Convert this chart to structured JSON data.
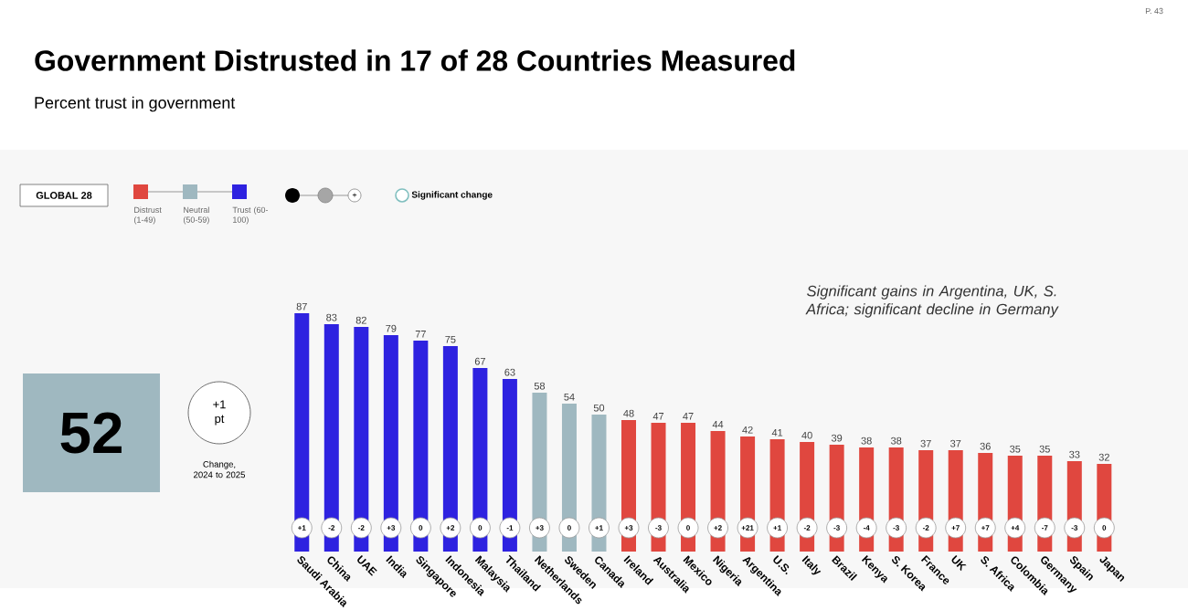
{
  "chart_data": {
    "type": "bar",
    "title": "Government Distrusted in 17 of 28 Countries Measured",
    "subtitle": "Percent trust in government",
    "categories": [
      "Saudi Arabia",
      "China",
      "UAE",
      "India",
      "Singapore",
      "Indonesia",
      "Malaysia",
      "Thailand",
      "Netherlands",
      "Sweden",
      "Canada",
      "Ireland",
      "Australia",
      "Mexico",
      "Nigeria",
      "Argentina",
      "U.S.",
      "Italy",
      "Brazil",
      "Kenya",
      "S. Korea",
      "France",
      "UK",
      "S. Africa",
      "Colombia",
      "Germany",
      "Spain",
      "Japan"
    ],
    "series": [
      {
        "name": "Distrust (1-49)",
        "color": "#e0473f",
        "values": [
          null,
          null,
          null,
          null,
          null,
          null,
          null,
          null,
          null,
          null,
          null,
          48,
          47,
          47,
          44,
          42,
          41,
          40,
          39,
          38,
          38,
          37,
          37,
          36,
          35,
          35,
          33,
          32
        ]
      },
      {
        "name": "Neutral (50-59)",
        "color": "#9fb8c0",
        "values": [
          null,
          null,
          null,
          null,
          null,
          null,
          null,
          null,
          58,
          54,
          50,
          null,
          null,
          null,
          null,
          null,
          null,
          null,
          null,
          null,
          null,
          null,
          null,
          null,
          null,
          null,
          null,
          null
        ]
      },
      {
        "name": "Trust (60-100)",
        "color": "#2e22e0",
        "values": [
          87,
          83,
          82,
          79,
          77,
          75,
          67,
          63,
          null,
          null,
          null,
          null,
          null,
          null,
          null,
          null,
          null,
          null,
          null,
          null,
          null,
          null,
          null,
          null,
          null,
          null,
          null,
          null
        ]
      }
    ],
    "stacked": true,
    "ylim": [
      0,
      87
    ],
    "data_labels": true,
    "tick_labels": "x",
    "legend": "top left",
    "annotations": [
      "Significant gains in Argentina, UK, S. Africa; significant decline in Germany",
      "GLOBAL 28",
      "52",
      "+1 pt",
      "Change, 2024 to 2025",
      "Significant change",
      "+",
      "P. 43",
      "+1",
      "-2",
      "-2",
      "+3",
      "0",
      "+2",
      "0",
      "-1",
      "+3",
      "0",
      "+1",
      "+3",
      "-3",
      "0",
      "+2",
      "+21",
      "+1",
      "-2",
      "-3",
      "-4",
      "-3",
      "-2",
      "+7",
      "+7",
      "+4",
      "-7",
      "-3",
      "0"
    ]
  }
}
